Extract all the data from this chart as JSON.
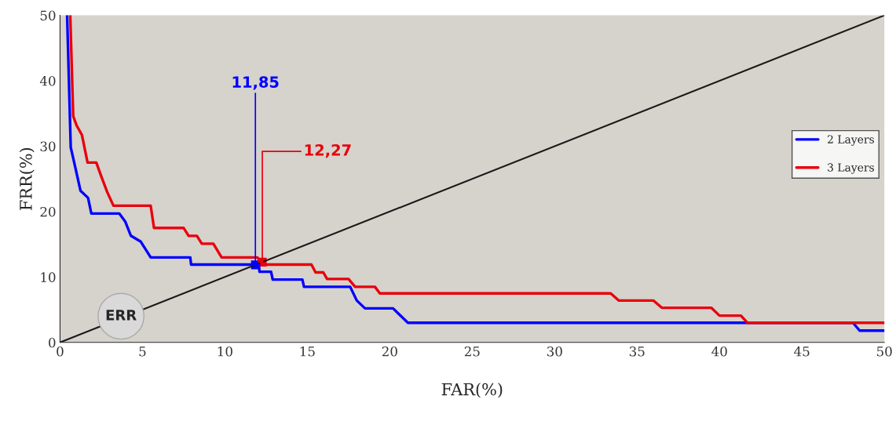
{
  "chart_data": {
    "type": "line",
    "xlabel": "FAR(%)",
    "ylabel": "FRR(%)",
    "xlim": [
      0,
      50
    ],
    "ylim": [
      0,
      50
    ],
    "xticks": [
      0,
      5,
      10,
      15,
      20,
      25,
      30,
      35,
      40,
      45,
      50
    ],
    "yticks": [
      0,
      10,
      20,
      30,
      40,
      50
    ],
    "grid": false,
    "legend": "right",
    "marker": "none",
    "line_style": "solid",
    "series": [
      {
        "name": "2 Layers",
        "color": "#0000ff",
        "x": [
          0.43,
          0.65,
          0.86,
          1.24,
          1.7,
          1.9,
          3.6,
          3.95,
          4.3,
          4.9,
          5.5,
          7.9,
          7.95,
          12.06,
          12.1,
          12.8,
          12.9,
          14.7,
          14.8,
          17.6,
          18.0,
          18.5,
          20.2,
          21.1,
          48.1,
          48.5,
          50
        ],
        "values": [
          50,
          29.8,
          27.5,
          23.2,
          22.1,
          19.7,
          19.7,
          18.5,
          16.3,
          15.4,
          13.0,
          13.0,
          11.9,
          11.9,
          10.8,
          10.8,
          9.6,
          9.6,
          8.5,
          8.5,
          6.4,
          5.2,
          5.2,
          3.0,
          3.0,
          1.8,
          1.8
        ]
      },
      {
        "name": "3 Layers",
        "color": "#e8000b",
        "x": [
          0.62,
          0.8,
          1.0,
          1.33,
          1.67,
          2.2,
          2.5,
          2.86,
          3.24,
          5.5,
          5.7,
          7.5,
          7.8,
          8.3,
          8.6,
          9.3,
          9.8,
          11.97,
          12.3,
          15.25,
          15.5,
          15.97,
          16.2,
          17.5,
          17.9,
          19.1,
          19.4,
          33.4,
          33.9,
          36.0,
          36.5,
          39.5,
          40.0,
          41.3,
          41.7,
          50
        ],
        "values": [
          50,
          34.6,
          33.2,
          31.7,
          27.5,
          27.5,
          25.4,
          23.0,
          20.9,
          20.9,
          17.5,
          17.5,
          16.3,
          16.3,
          15.1,
          15.1,
          13.0,
          13.0,
          11.9,
          11.9,
          10.7,
          10.7,
          9.7,
          9.7,
          8.5,
          8.5,
          7.5,
          7.5,
          6.4,
          6.4,
          5.3,
          5.3,
          4.1,
          4.1,
          3.0,
          3.0
        ]
      },
      {
        "color": "#1a1a1a",
        "x": [
          0,
          50
        ],
        "values": [
          0,
          50
        ]
      }
    ],
    "annotations": [
      {
        "text": "11,85",
        "x": 11.85,
        "y": 11.85
      },
      {
        "text": "12,27",
        "x": 12.27,
        "y": 12.27
      },
      {
        "text": "ERR",
        "x": 3.7,
        "y": 4.0
      }
    ]
  }
}
